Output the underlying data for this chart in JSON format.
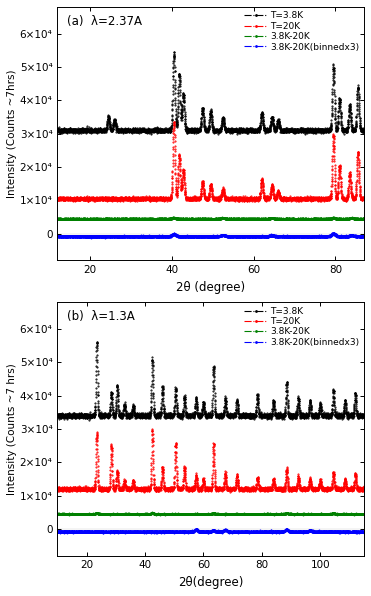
{
  "panel_a": {
    "label": "(a)  λ=2.37A",
    "xlabel": "2θ (degree)",
    "ylabel": "Intensity (Counts ~7hrs)",
    "xmin": 12,
    "xmax": 87,
    "ymin": -8000,
    "ymax": 68000,
    "yticks": [
      0,
      10000,
      20000,
      30000,
      40000,
      50000,
      60000
    ],
    "ytick_labels": [
      "0",
      "1×10⁴",
      "2×10⁴",
      "3×10⁴",
      "4×10⁴",
      "5×10⁴",
      "6×10⁴"
    ],
    "xticks": [
      20,
      40,
      60,
      80
    ],
    "baseline_black": 31000,
    "baseline_red": 10500,
    "baseline_green": 4500,
    "baseline_blue": -800,
    "peaks_black": [
      24.5,
      26.0,
      40.5,
      41.8,
      42.8,
      47.5,
      49.5,
      52.5,
      62.0,
      64.5,
      66.0,
      79.5,
      81.0,
      83.5,
      85.5
    ],
    "peak_heights_black": [
      4000,
      3200,
      23000,
      17000,
      11000,
      6500,
      5800,
      3800,
      5200,
      4200,
      3000,
      19000,
      9500,
      7500,
      13000
    ],
    "peaks_red": [
      40.5,
      41.8,
      42.8,
      47.5,
      49.5,
      52.5,
      62.0,
      64.5,
      66.0,
      79.5,
      81.0,
      83.5,
      85.5
    ],
    "peak_heights_red": [
      23000,
      13000,
      8500,
      5000,
      4200,
      2800,
      5800,
      4000,
      2200,
      19000,
      9800,
      7500,
      14000
    ],
    "peaks_green": [
      40.5,
      52.5,
      64.5,
      79.5,
      84.0
    ],
    "peak_heights_green": [
      300,
      250,
      250,
      300,
      250
    ],
    "peaks_blue": [
      40.5,
      52.5,
      64.5,
      79.5,
      84.0
    ],
    "peak_heights_blue": [
      700,
      400,
      350,
      800,
      400
    ],
    "legend": [
      "T=3.8K",
      "T=20K",
      "3.8K-20K",
      "3.8K-20K(binnedx3)"
    ],
    "legend_colors": [
      "black",
      "red",
      "green",
      "blue"
    ],
    "noise_black": 300,
    "noise_red": 250,
    "noise_green": 60,
    "noise_blue": 100
  },
  "panel_b": {
    "label": "(b)  λ=1.3A",
    "xlabel": "2θ(degree)",
    "ylabel": "Intensity (Counts ~7 hrs)",
    "xmin": 10,
    "xmax": 115,
    "ymin": -8000,
    "ymax": 68000,
    "yticks": [
      0,
      10000,
      20000,
      30000,
      40000,
      50000,
      60000
    ],
    "ytick_labels": [
      "0",
      "1×10⁴",
      "2×10⁴",
      "3×10⁴",
      "4×10⁴",
      "5×10⁴",
      "6×10⁴"
    ],
    "xticks": [
      20,
      40,
      60,
      80,
      100
    ],
    "baseline_black": 34000,
    "baseline_red": 12000,
    "baseline_green": 4500,
    "baseline_blue": -800,
    "peaks_black": [
      23.5,
      28.5,
      30.5,
      33.0,
      36.0,
      42.5,
      46.0,
      50.5,
      53.5,
      57.5,
      60.0,
      63.5,
      67.5,
      71.5,
      78.5,
      84.0,
      88.5,
      92.5,
      96.5,
      100.0,
      104.5,
      108.5,
      112.0
    ],
    "peak_heights_black": [
      22000,
      7000,
      9000,
      3500,
      3000,
      17000,
      8500,
      8000,
      6000,
      5000,
      4000,
      15000,
      5000,
      4500,
      6000,
      4500,
      10000,
      5500,
      4500,
      3500,
      7500,
      4500,
      6500
    ],
    "peaks_red": [
      23.5,
      28.5,
      30.5,
      33.0,
      36.0,
      42.5,
      46.0,
      50.5,
      53.5,
      57.5,
      60.0,
      63.5,
      67.5,
      71.5,
      78.5,
      84.0,
      88.5,
      92.5,
      96.5,
      100.0,
      104.5,
      108.5,
      112.0
    ],
    "peak_heights_red": [
      17000,
      13000,
      5500,
      2500,
      2500,
      17500,
      6500,
      13500,
      6500,
      4000,
      3000,
      13500,
      4500,
      4000,
      3500,
      3000,
      6000,
      3500,
      3000,
      2500,
      5000,
      3000,
      4500
    ],
    "peaks_green": [
      23.5,
      42.5,
      63.5,
      88.5,
      104.5
    ],
    "peak_heights_green": [
      300,
      280,
      280,
      280,
      280
    ],
    "peaks_blue": [
      57.5,
      63.5,
      67.5,
      88.5,
      96.5
    ],
    "peak_heights_blue": [
      600,
      400,
      500,
      650,
      380
    ],
    "legend": [
      "T=3.8K",
      "T=20K",
      "3.8K-20K",
      "3.8K-20K(binnedx3)"
    ],
    "legend_colors": [
      "black",
      "red",
      "green",
      "blue"
    ],
    "noise_black": 350,
    "noise_red": 280,
    "noise_green": 60,
    "noise_blue": 110
  }
}
